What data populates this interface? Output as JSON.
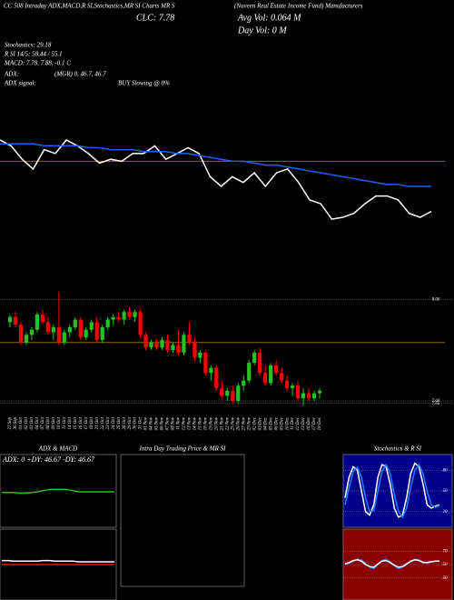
{
  "header": {
    "title": "CC 508 Intraday ADX,MACD,R SI,Stochastics,MR SI Charts MR S",
    "fund": "(Nuveen Real Estate Income Fund) Manufacturers",
    "clc": "CLC: 7.78",
    "avg_vol": "Avg Vol: 0.064  M",
    "day_vol": "Day Vol: 0  M",
    "stochastics": "Stochastics: 29.18",
    "rsi": "R SI 14/5: 58.44 / 55.1",
    "macd": "MACD: 7.78, 7.88, -0.1 C",
    "adx": "ADX:",
    "adx_values": "(MGR) 0, 46.7, 46.7",
    "adx_signal": "ADX  signal:",
    "signal": "BUY Slowing @ 0%"
  },
  "chart_data": [
    {
      "type": "line",
      "ylim": [
        7.4,
        8.2
      ],
      "hline": 7.93,
      "hline_color": "#8b6914",
      "series": [
        {
          "color": "#ffffff",
          "values": [
            8.04,
            8.01,
            7.94,
            7.89,
            7.99,
            7.97,
            8.04,
            8.01,
            7.97,
            7.92,
            7.94,
            7.93,
            7.97,
            7.97,
            8.01,
            7.94,
            7.97,
            8.0,
            7.97,
            7.85,
            7.8,
            7.85,
            7.82,
            7.87,
            7.8,
            7.87,
            7.89,
            7.82,
            7.73,
            7.71,
            7.63,
            7.64,
            7.66,
            7.71,
            7.75,
            7.75,
            7.73,
            7.66,
            7.64,
            7.67
          ]
        },
        {
          "color": "#1f5fff",
          "values": [
            8.02,
            8.02,
            8.02,
            8.02,
            8.01,
            8.01,
            8.01,
            8.01,
            8.0,
            8.0,
            7.99,
            7.99,
            7.99,
            7.98,
            7.98,
            7.98,
            7.97,
            7.97,
            7.96,
            7.95,
            7.94,
            7.93,
            7.93,
            7.92,
            7.91,
            7.91,
            7.9,
            7.89,
            7.88,
            7.87,
            7.86,
            7.85,
            7.84,
            7.83,
            7.82,
            7.81,
            7.81,
            7.8,
            7.8,
            7.8
          ]
        }
      ]
    },
    {
      "type": "candlestick",
      "ylim": [
        7.61,
        8.1
      ],
      "yticks": [
        8.06,
        7.66,
        7.65
      ],
      "hline": 7.89,
      "hline_color": "#8b6914",
      "up_color": "#22c322",
      "down_color": "#ff0000",
      "categories": [
        "27 Sep",
        "30 Sep",
        "01 Oct",
        "02 Oct",
        "03 Oct",
        "04 Oct",
        "07 Oct",
        "08 Oct",
        "09 Oct",
        "10 Oct",
        "11 Oct",
        "14 Oct",
        "15 Oct",
        "16 Oct",
        "17 Oct",
        "18 Oct",
        "21 Oct",
        "22 Oct",
        "23 Oct",
        "24 Oct",
        "25 Oct",
        "28 Oct",
        "29 Oct",
        "30 Oct",
        "31 Oct",
        "01 Nov",
        "04 Nov",
        "05 Nov",
        "06 Nov",
        "07 Nov",
        "08 Nov",
        "11 Nov",
        "12 Nov",
        "13 Nov",
        "14 Nov",
        "15 Nov",
        "18 Nov",
        "19 Nov",
        "20 Nov",
        "21 Nov",
        "22 Nov",
        "25 Nov",
        "26 Nov",
        "27 Nov",
        "29 Nov",
        "02 Dec",
        "03 Dec",
        "04 Dec",
        "05 Dec",
        "06 Dec",
        "09 Dec",
        "10 Dec",
        "11 Dec",
        "12 Dec",
        "13 Dec",
        "16 Dec",
        "17 Dec",
        "18 Dec"
      ],
      "ohlc": [
        [
          7.97,
          8.0,
          7.95,
          7.99
        ],
        [
          7.99,
          8.01,
          7.95,
          7.96
        ],
        [
          7.96,
          7.97,
          7.88,
          7.89
        ],
        [
          7.89,
          7.93,
          7.88,
          7.92
        ],
        [
          7.92,
          7.95,
          7.9,
          7.94
        ],
        [
          7.94,
          8.01,
          7.93,
          8.0
        ],
        [
          8.0,
          8.02,
          7.96,
          7.97
        ],
        [
          7.97,
          7.99,
          7.92,
          7.93
        ],
        [
          7.93,
          7.96,
          7.9,
          7.95
        ],
        [
          7.95,
          8.09,
          7.88,
          7.89
        ],
        [
          7.89,
          7.94,
          7.88,
          7.93
        ],
        [
          7.93,
          7.96,
          7.91,
          7.95
        ],
        [
          7.95,
          7.99,
          7.94,
          7.98
        ],
        [
          7.98,
          7.99,
          7.9,
          7.91
        ],
        [
          7.91,
          7.95,
          7.9,
          7.94
        ],
        [
          7.94,
          7.98,
          7.93,
          7.97
        ],
        [
          7.97,
          7.99,
          7.89,
          7.9
        ],
        [
          7.9,
          7.96,
          7.89,
          7.95
        ],
        [
          7.95,
          7.99,
          7.94,
          7.98
        ],
        [
          7.98,
          8.0,
          7.96,
          7.99
        ],
        [
          7.99,
          8.01,
          7.97,
          7.98
        ],
        [
          7.98,
          8.02,
          7.96,
          8.01
        ],
        [
          8.01,
          8.03,
          7.98,
          7.99
        ],
        [
          7.99,
          8.02,
          7.97,
          8.01
        ],
        [
          8.01,
          8.02,
          7.91,
          7.92
        ],
        [
          7.92,
          7.93,
          7.86,
          7.87
        ],
        [
          7.87,
          7.9,
          7.86,
          7.89
        ],
        [
          7.89,
          7.9,
          7.86,
          7.87
        ],
        [
          7.87,
          7.91,
          7.86,
          7.9
        ],
        [
          7.9,
          7.92,
          7.85,
          7.86
        ],
        [
          7.86,
          7.89,
          7.85,
          7.88
        ],
        [
          7.88,
          7.94,
          7.84,
          7.85
        ],
        [
          7.85,
          7.93,
          7.84,
          7.92
        ],
        [
          7.92,
          7.97,
          7.88,
          7.89
        ],
        [
          7.89,
          7.91,
          7.82,
          7.83
        ],
        [
          7.83,
          7.86,
          7.81,
          7.85
        ],
        [
          7.85,
          7.86,
          7.76,
          7.77
        ],
        [
          7.77,
          7.8,
          7.74,
          7.79
        ],
        [
          7.79,
          7.8,
          7.7,
          7.71
        ],
        [
          7.71,
          7.74,
          7.67,
          7.68
        ],
        [
          7.68,
          7.71,
          7.66,
          7.7
        ],
        [
          7.7,
          7.72,
          7.65,
          7.66
        ],
        [
          7.66,
          7.73,
          7.65,
          7.72
        ],
        [
          7.72,
          7.76,
          7.7,
          7.74
        ],
        [
          7.74,
          7.82,
          7.73,
          7.81
        ],
        [
          7.81,
          7.86,
          7.8,
          7.85
        ],
        [
          7.85,
          7.87,
          7.76,
          7.77
        ],
        [
          7.77,
          7.8,
          7.72,
          7.73
        ],
        [
          7.73,
          7.81,
          7.72,
          7.8
        ],
        [
          7.8,
          7.82,
          7.76,
          7.77
        ],
        [
          7.77,
          7.79,
          7.73,
          7.74
        ],
        [
          7.74,
          7.76,
          7.7,
          7.71
        ],
        [
          7.71,
          7.73,
          7.68,
          7.72
        ],
        [
          7.72,
          7.74,
          7.66,
          7.67
        ],
        [
          7.67,
          7.71,
          7.64,
          7.69
        ],
        [
          7.69,
          7.71,
          7.66,
          7.67
        ],
        [
          7.67,
          7.7,
          7.66,
          7.69
        ],
        [
          7.69,
          7.71,
          7.67,
          7.7
        ]
      ]
    },
    {
      "type": "line",
      "title": "ADX  & MACD",
      "subtitle": "ADX: 0  +DY: 46.67  -DY: 46.67",
      "ylim": [
        0,
        100
      ],
      "series": [
        {
          "color": "#22c322",
          "values": [
            55,
            55,
            55,
            54,
            54,
            55,
            56,
            58,
            60,
            60,
            60,
            60,
            58,
            56,
            56,
            56,
            56,
            56,
            56,
            56
          ]
        }
      ]
    },
    {
      "type": "line",
      "ylim": [
        -0.5,
        0.5
      ],
      "series": [
        {
          "color": "#ff0000",
          "values": [
            0,
            0,
            0,
            0,
            0,
            0,
            0,
            0,
            0,
            0,
            0,
            0,
            0,
            0,
            0,
            0,
            0,
            0,
            0,
            0
          ]
        },
        {
          "color": "#ffffff",
          "values": [
            0.06,
            0.06,
            0.05,
            0.05,
            0.05,
            0.05,
            0.05,
            0.06,
            0.06,
            0.05,
            0.05,
            0.05,
            0.05,
            0.04,
            0.04,
            0.04,
            0.04,
            0.04,
            0.04,
            0.04
          ]
        }
      ]
    },
    {
      "type": "panel",
      "title": "Intra Day Trading Price  & MR SI"
    },
    {
      "type": "line",
      "title": "Stochastics & R SI",
      "ylim": [
        0,
        100
      ],
      "yticks": [
        80,
        50,
        20
      ],
      "bg": "#00008b",
      "series": [
        {
          "color": "#ffffff",
          "values": [
            40,
            70,
            85,
            80,
            50,
            20,
            15,
            30,
            70,
            88,
            85,
            60,
            25,
            12,
            15,
            40,
            75,
            90,
            85,
            60,
            30,
            25,
            28,
            30
          ]
        },
        {
          "color": "#1f7fff",
          "values": [
            30,
            55,
            78,
            84,
            70,
            40,
            20,
            22,
            50,
            78,
            88,
            75,
            45,
            20,
            12,
            25,
            55,
            80,
            88,
            75,
            50,
            30,
            26,
            29
          ]
        }
      ]
    },
    {
      "type": "line",
      "ylim": [
        0,
        100
      ],
      "yticks": [
        70,
        50,
        30
      ],
      "bg": "#8b0000",
      "series": [
        {
          "color": "#1f7fff",
          "values": [
            50,
            52,
            55,
            58,
            57,
            52,
            46,
            44,
            50,
            56,
            58,
            54,
            48,
            44,
            46,
            50,
            54,
            58,
            57,
            54,
            52,
            54,
            55,
            55
          ]
        },
        {
          "color": "#ffffff",
          "values": [
            51,
            53,
            56,
            57,
            55,
            50,
            47,
            46,
            51,
            55,
            56,
            53,
            49,
            46,
            47,
            51,
            55,
            57,
            56,
            53,
            53,
            54,
            55,
            55
          ]
        }
      ]
    }
  ]
}
